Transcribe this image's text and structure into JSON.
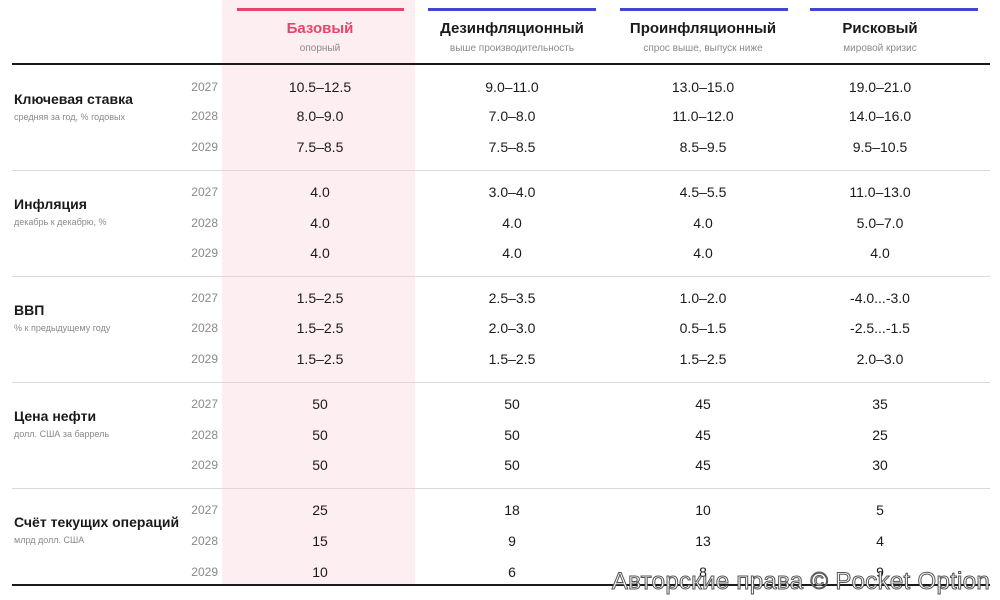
{
  "scenarios": [
    {
      "name": "Базовый",
      "subtitle": "опорный",
      "color": "#e8436a"
    },
    {
      "name": "Дезинфляционный",
      "subtitle": "выше производительность",
      "color": "#4146d6"
    },
    {
      "name": "Проинфляционный",
      "subtitle": "спрос выше, выпуск ниже",
      "color": "#4146d6"
    },
    {
      "name": "Рисковый",
      "subtitle": "мировой кризис",
      "color": "#4146d6"
    }
  ],
  "indicators": [
    {
      "name": "Ключевая ставка",
      "unit": "средняя за год, % годовых",
      "rows": [
        {
          "year": "2027",
          "values": [
            "10.5–12.5",
            "9.0–11.0",
            "13.0–15.0",
            "19.0–21.0"
          ]
        },
        {
          "year": "2028",
          "values": [
            "8.0–9.0",
            "7.0–8.0",
            "11.0–12.0",
            "14.0–16.0"
          ]
        },
        {
          "year": "2029",
          "values": [
            "7.5–8.5",
            "7.5–8.5",
            "8.5–9.5",
            "9.5–10.5"
          ]
        }
      ]
    },
    {
      "name": "Инфляция",
      "unit": "декабрь к декабрю, %",
      "rows": [
        {
          "year": "2027",
          "values": [
            "4.0",
            "3.0–4.0",
            "4.5–5.5",
            "11.0–13.0"
          ]
        },
        {
          "year": "2028",
          "values": [
            "4.0",
            "4.0",
            "4.0",
            "5.0–7.0"
          ]
        },
        {
          "year": "2029",
          "values": [
            "4.0",
            "4.0",
            "4.0",
            "4.0"
          ]
        }
      ]
    },
    {
      "name": "ВВП",
      "unit": "% к предыдущему году",
      "rows": [
        {
          "year": "2027",
          "values": [
            "1.5–2.5",
            "2.5–3.5",
            "1.0–2.0",
            "-4.0...-3.0"
          ]
        },
        {
          "year": "2028",
          "values": [
            "1.5–2.5",
            "2.0–3.0",
            "0.5–1.5",
            "-2.5...-1.5"
          ]
        },
        {
          "year": "2029",
          "values": [
            "1.5–2.5",
            "1.5–2.5",
            "1.5–2.5",
            "2.0–3.0"
          ]
        }
      ]
    },
    {
      "name": "Цена нефти",
      "unit": "долл. США за баррель",
      "rows": [
        {
          "year": "2027",
          "values": [
            "50",
            "50",
            "45",
            "35"
          ]
        },
        {
          "year": "2028",
          "values": [
            "50",
            "50",
            "45",
            "25"
          ]
        },
        {
          "year": "2029",
          "values": [
            "50",
            "50",
            "45",
            "30"
          ]
        }
      ]
    },
    {
      "name": "Счёт текущих операций",
      "unit": "млрд долл. США",
      "rows": [
        {
          "year": "2027",
          "values": [
            "25",
            "18",
            "10",
            "5"
          ]
        },
        {
          "year": "2028",
          "values": [
            "15",
            "9",
            "13",
            "4"
          ]
        },
        {
          "year": "2029",
          "values": [
            "10",
            "6",
            "8",
            "9"
          ]
        }
      ]
    }
  ],
  "watermark": "Авторские права © Pocket Option"
}
